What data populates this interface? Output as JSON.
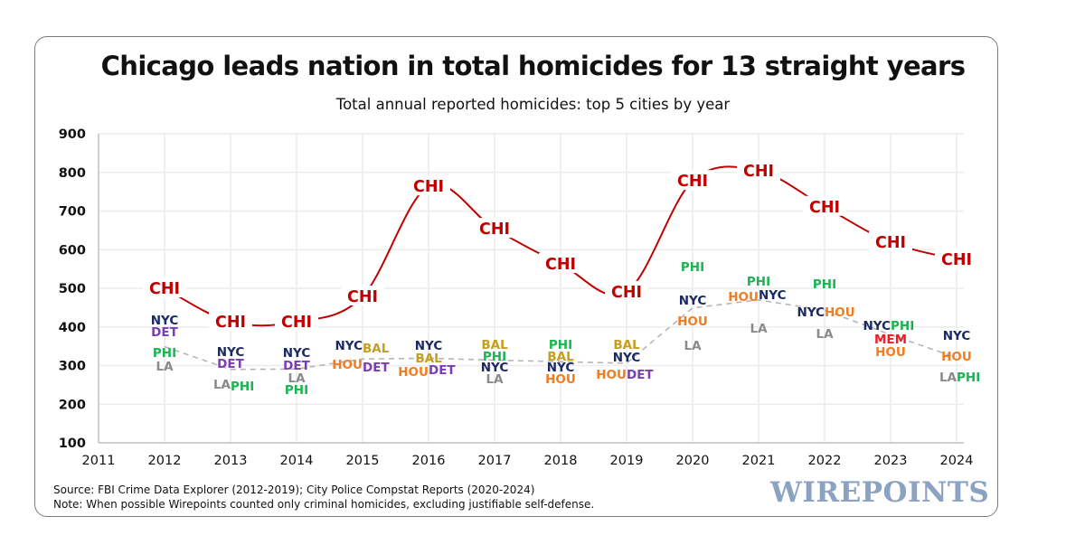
{
  "chart_data": {
    "type": "scatter",
    "title": "Chicago leads nation in total homicides for 13 straight years",
    "subtitle": "Total annual reported homicides: top 5 cities by year",
    "xlabel": "",
    "ylabel": "",
    "xlim": [
      2011,
      2024
    ],
    "ylim": [
      100,
      900
    ],
    "yticks": [
      100,
      200,
      300,
      400,
      500,
      600,
      700,
      800,
      900
    ],
    "xticks": [
      2011,
      2012,
      2013,
      2014,
      2015,
      2016,
      2017,
      2018,
      2019,
      2020,
      2021,
      2022,
      2023,
      2024
    ],
    "grid": true,
    "colors": {
      "CHI": "#c00000",
      "NYC": "#1b2a63",
      "DET": "#7a3db5",
      "PHI": "#19b552",
      "LA": "#8a8a8a",
      "HOU": "#f47c20",
      "BAL": "#c59d1f",
      "MEM": "#ee1c25",
      "trend": "#b5b5b5"
    },
    "chicago_series": {
      "name": "CHI",
      "x": [
        2012,
        2013,
        2014,
        2015,
        2016,
        2017,
        2018,
        2019,
        2020,
        2021,
        2022,
        2023,
        2024
      ],
      "values": [
        500,
        413,
        413,
        479,
        764,
        654,
        563,
        491,
        778,
        804,
        711,
        619,
        575
      ]
    },
    "other_cities": [
      {
        "year": 2012,
        "labels": [
          {
            "city": "NYC",
            "value": 418
          },
          {
            "city": "DET",
            "value": 388
          },
          {
            "city": "PHI",
            "value": 334
          },
          {
            "city": "LA",
            "value": 299
          }
        ]
      },
      {
        "year": 2013,
        "labels": [
          {
            "city": "NYC",
            "value": 336
          },
          {
            "city": "DET",
            "value": 306
          },
          {
            "city": "LA",
            "value": 252
          },
          {
            "city": "PHI",
            "value": 247
          }
        ]
      },
      {
        "year": 2014,
        "labels": [
          {
            "city": "NYC",
            "value": 334
          },
          {
            "city": "DET",
            "value": 301
          },
          {
            "city": "LA",
            "value": 268
          },
          {
            "city": "PHI",
            "value": 238
          }
        ]
      },
      {
        "year": 2015,
        "labels": [
          {
            "city": "NYC",
            "value": 353
          },
          {
            "city": "BAL",
            "value": 346
          },
          {
            "city": "HOU",
            "value": 303
          },
          {
            "city": "DET",
            "value": 297
          }
        ]
      },
      {
        "year": 2016,
        "labels": [
          {
            "city": "NYC",
            "value": 353
          },
          {
            "city": "BAL",
            "value": 320
          },
          {
            "city": "HOU",
            "value": 285
          },
          {
            "city": "DET",
            "value": 289
          }
        ]
      },
      {
        "year": 2017,
        "labels": [
          {
            "city": "BAL",
            "value": 355
          },
          {
            "city": "PHI",
            "value": 325
          },
          {
            "city": "NYC",
            "value": 297
          },
          {
            "city": "LA",
            "value": 266
          }
        ]
      },
      {
        "year": 2018,
        "labels": [
          {
            "city": "PHI",
            "value": 355
          },
          {
            "city": "BAL",
            "value": 325
          },
          {
            "city": "NYC",
            "value": 297
          },
          {
            "city": "HOU",
            "value": 266
          }
        ]
      },
      {
        "year": 2019,
        "labels": [
          {
            "city": "BAL",
            "value": 355
          },
          {
            "city": "NYC",
            "value": 322
          },
          {
            "city": "HOU",
            "value": 278
          },
          {
            "city": "DET",
            "value": 278
          }
        ]
      },
      {
        "year": 2020,
        "labels": [
          {
            "city": "PHI",
            "value": 556
          },
          {
            "city": "NYC",
            "value": 470
          },
          {
            "city": "HOU",
            "value": 416
          },
          {
            "city": "LA",
            "value": 353
          }
        ]
      },
      {
        "year": 2021,
        "labels": [
          {
            "city": "PHI",
            "value": 519
          },
          {
            "city": "HOU",
            "value": 479
          },
          {
            "city": "NYC",
            "value": 484
          },
          {
            "city": "LA",
            "value": 397
          }
        ]
      },
      {
        "year": 2022,
        "labels": [
          {
            "city": "PHI",
            "value": 512
          },
          {
            "city": "NYC",
            "value": 439
          },
          {
            "city": "HOU",
            "value": 439
          },
          {
            "city": "LA",
            "value": 383
          }
        ]
      },
      {
        "year": 2023,
        "labels": [
          {
            "city": "NYC",
            "value": 404
          },
          {
            "city": "PHI",
            "value": 404
          },
          {
            "city": "MEM",
            "value": 369
          },
          {
            "city": "HOU",
            "value": 336
          }
        ]
      },
      {
        "year": 2024,
        "labels": [
          {
            "city": "NYC",
            "value": 378
          },
          {
            "city": "HOU",
            "value": 325
          },
          {
            "city": "LA",
            "value": 271
          },
          {
            "city": "PHI",
            "value": 271
          }
        ]
      }
    ],
    "trend_line": {
      "name": "others-average",
      "style": "dashed",
      "x": [
        2012,
        2013,
        2014,
        2015,
        2016,
        2017,
        2018,
        2019,
        2020,
        2021,
        2022,
        2023,
        2024
      ],
      "values": [
        349,
        290,
        291,
        317,
        319,
        314,
        310,
        306,
        449,
        470,
        443,
        380,
        320
      ]
    }
  },
  "footer": {
    "source": "Source: FBI Crime Data Explorer (2012-2019); City Police Compstat Reports (2020-2024)",
    "note": "Note: When possible Wirepoints counted only criminal homicides, excluding justifiable self-defense."
  },
  "brand": {
    "logo_text": "WIREPOINTS"
  }
}
